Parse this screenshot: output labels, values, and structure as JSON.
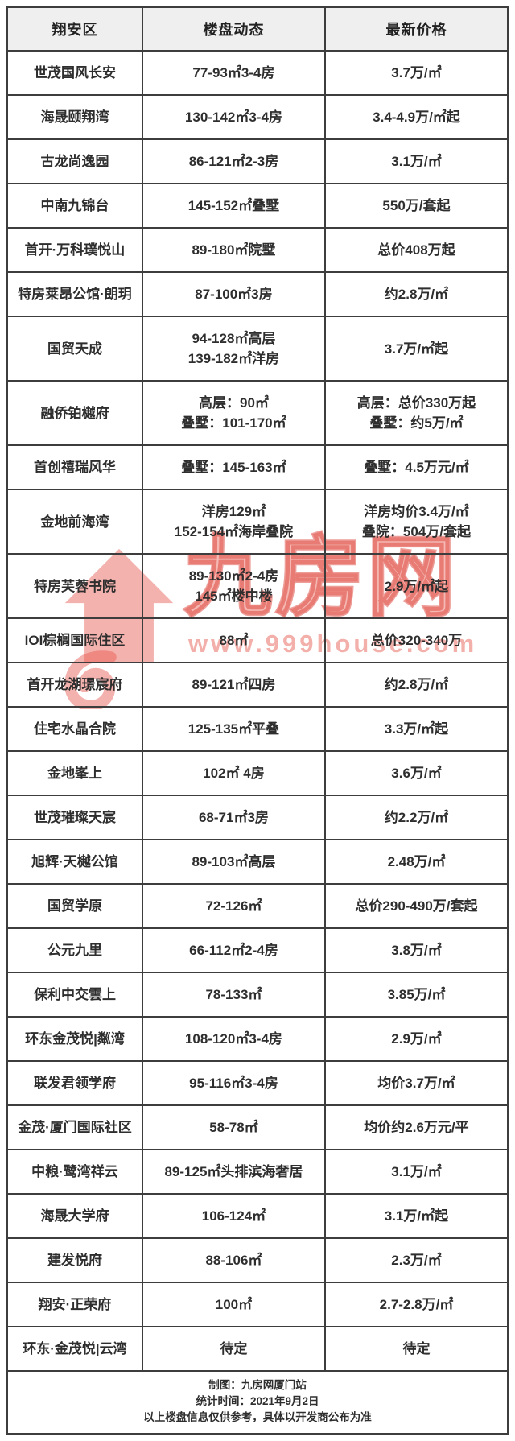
{
  "table": {
    "headers": [
      "翔安区",
      "楼盘动态",
      "最新价格"
    ],
    "rows": [
      {
        "name": "世茂国风长安",
        "dynamic": [
          "77-93㎡3-4房"
        ],
        "price": [
          "3.7万/㎡"
        ]
      },
      {
        "name": "海晟颐翔湾",
        "dynamic": [
          "130-142㎡3-4房"
        ],
        "price": [
          "3.4-4.9万/㎡起"
        ]
      },
      {
        "name": "古龙尚逸园",
        "dynamic": [
          "86-121㎡2-3房"
        ],
        "price": [
          "3.1万/㎡"
        ]
      },
      {
        "name": "中南九锦台",
        "dynamic": [
          "145-152㎡叠墅"
        ],
        "price": [
          "550万/套起"
        ]
      },
      {
        "name": "首开·万科璞悦山",
        "dynamic": [
          "89-180㎡院墅"
        ],
        "price": [
          "总价408万起"
        ]
      },
      {
        "name": "特房莱昂公馆·朗玥",
        "dynamic": [
          "87-100㎡3房"
        ],
        "price": [
          "约2.8万/㎡"
        ]
      },
      {
        "name": "国贸天成",
        "dynamic": [
          "94-128㎡高层",
          "139-182㎡洋房"
        ],
        "price": [
          "3.7万/㎡起"
        ]
      },
      {
        "name": "融侨铂樾府",
        "dynamic": [
          "高层：90㎡",
          "叠墅：101-170㎡"
        ],
        "price": [
          "高层：总价330万起",
          "叠墅：约5万/㎡"
        ]
      },
      {
        "name": "首创禧瑞风华",
        "dynamic": [
          "叠墅：145-163㎡"
        ],
        "price": [
          "叠墅：4.5万元/㎡"
        ]
      },
      {
        "name": "金地前海湾",
        "dynamic": [
          "洋房129㎡",
          "152-154㎡海岸叠院"
        ],
        "price": [
          "洋房均价3.4万/㎡",
          "叠院：504万/套起"
        ]
      },
      {
        "name": "特房芙蓉书院",
        "dynamic": [
          "89-130㎡2-4房",
          "145㎡楼中楼"
        ],
        "price": [
          "2.9万/㎡起"
        ]
      },
      {
        "name": "IOI棕榈国际住区",
        "dynamic": [
          "88㎡"
        ],
        "price": [
          "总价320-340万"
        ]
      },
      {
        "name": "首开龙湖璟宸府",
        "dynamic": [
          "89-121㎡四房"
        ],
        "price": [
          "约2.8万/㎡"
        ]
      },
      {
        "name": "住宅水晶合院",
        "dynamic": [
          "125-135㎡平叠"
        ],
        "price": [
          "3.3万/㎡起"
        ]
      },
      {
        "name": "金地峯上",
        "dynamic": [
          "102㎡ 4房"
        ],
        "price": [
          "3.6万/㎡"
        ]
      },
      {
        "name": "世茂璀璨天宸",
        "dynamic": [
          "68-71㎡3房"
        ],
        "price": [
          "约2.2万/㎡"
        ]
      },
      {
        "name": "旭辉·天樾公馆",
        "dynamic": [
          "89-103㎡高层"
        ],
        "price": [
          "2.48万/㎡"
        ]
      },
      {
        "name": "国贸学原",
        "dynamic": [
          "72-126㎡"
        ],
        "price": [
          "总价290-490万/套起"
        ]
      },
      {
        "name": "公元九里",
        "dynamic": [
          "66-112㎡2-4房"
        ],
        "price": [
          "3.8万/㎡"
        ]
      },
      {
        "name": "保利中交雲上",
        "dynamic": [
          "78-133㎡"
        ],
        "price": [
          "3.85万/㎡"
        ]
      },
      {
        "name": "环东金茂悦|粼湾",
        "dynamic": [
          "108-120㎡3-4房"
        ],
        "price": [
          "2.9万/㎡"
        ]
      },
      {
        "name": "联发君领学府",
        "dynamic": [
          "95-116㎡3-4房"
        ],
        "price": [
          "均价3.7万/㎡"
        ]
      },
      {
        "name": "金茂·厦门国际社区",
        "dynamic": [
          "58-78㎡"
        ],
        "price": [
          "均价约2.6万元/平"
        ]
      },
      {
        "name": "中粮·鹭湾祥云",
        "dynamic": [
          "89-125㎡头排滨海奢居"
        ],
        "price": [
          "3.1万/㎡"
        ]
      },
      {
        "name": "海晟大学府",
        "dynamic": [
          "106-124㎡"
        ],
        "price": [
          "3.1万/㎡起"
        ]
      },
      {
        "name": "建发悦府",
        "dynamic": [
          "88-106㎡"
        ],
        "price": [
          "2.3万/㎡"
        ]
      },
      {
        "name": "翔安·正荣府",
        "dynamic": [
          "100㎡"
        ],
        "price": [
          "2.7-2.8万/㎡"
        ]
      },
      {
        "name": "环东·金茂悦|云湾",
        "dynamic": [
          "待定"
        ],
        "price": [
          "待定"
        ]
      }
    ],
    "footer": {
      "credit": "制图：九房网厦门站",
      "date": "统计时间：2021年9月2日",
      "disclaimer": "以上楼盘信息仅供参考，具体以开发商公布为准"
    }
  },
  "watermark": {
    "brand": "九房网",
    "url": "www.999house.com",
    "logo_icon": "house-icon",
    "color": "#e7554b"
  },
  "colors": {
    "header_bg": "#efefef",
    "border": "#3d3d3d",
    "text": "#2e2e2e",
    "watermark_red": "#e7554b",
    "watermark_light": "#eb7a71"
  }
}
